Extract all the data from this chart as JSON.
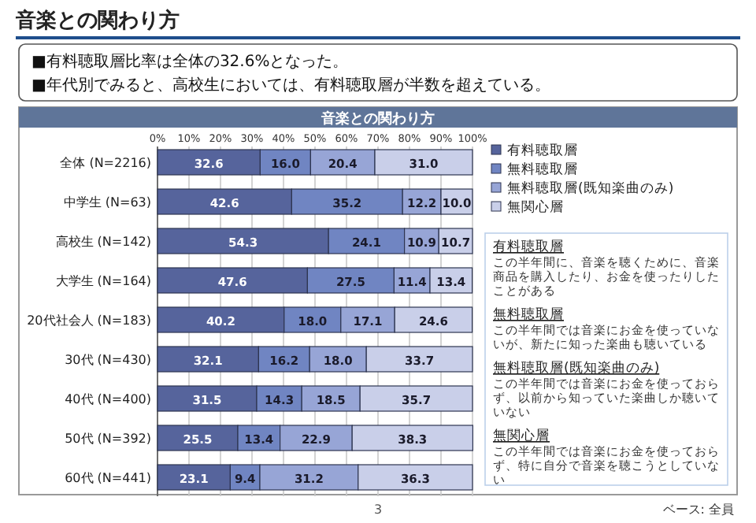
{
  "chart_data": {
    "type": "bar",
    "orientation": "horizontal",
    "stacked": true,
    "title": "音楽との関わり方",
    "subtitle": "音楽との関わり方",
    "categories": [
      "全体 (N=2216)",
      "中学生 (N=63)",
      "高校生 (N=142)",
      "大学生 (N=164)",
      "20代社会人 (N=183)",
      "30代 (N=430)",
      "40代 (N=400)",
      "50代 (N=392)",
      "60代 (N=441)"
    ],
    "series": [
      {
        "name": "有料聴取層",
        "color": "#56649c",
        "values": [
          32.6,
          42.6,
          54.3,
          47.6,
          40.2,
          32.1,
          31.5,
          25.5,
          23.1
        ],
        "value_labels": [
          "32.6",
          "42.6",
          "54.3",
          "47.6",
          "40.2",
          "32.1",
          "31.5",
          "25.5",
          "23.1"
        ]
      },
      {
        "name": "無料聴取層",
        "color": "#7085c2",
        "values": [
          16.0,
          35.2,
          24.1,
          27.5,
          18.0,
          16.2,
          14.3,
          13.4,
          9.4
        ],
        "value_labels": [
          "16.0",
          "35.2",
          "24.1",
          "27.5",
          "18.0",
          "16.2",
          "14.3",
          "13.4",
          "9.4"
        ]
      },
      {
        "name": "無料聴取層(既知楽曲のみ)",
        "color": "#97a5d6",
        "values": [
          20.4,
          12.2,
          10.9,
          11.4,
          17.1,
          18.0,
          18.5,
          22.9,
          31.2
        ],
        "value_labels": [
          "20.4",
          "12.2",
          "10.9",
          "11.4",
          "17.1",
          "18.0",
          "18.5",
          "22.9",
          "31.2"
        ]
      },
      {
        "name": "無関心層",
        "color": "#c9cfe9",
        "values": [
          31.0,
          10.0,
          10.7,
          13.4,
          24.6,
          33.7,
          35.7,
          38.3,
          36.3
        ],
        "value_labels": [
          "31.0",
          "10.0",
          "10.7",
          "13.4",
          "24.6",
          "33.7",
          "35.7",
          "38.3",
          "36.3"
        ]
      }
    ],
    "xlim": [
      0,
      100
    ],
    "xticks": [
      {
        "value": 0,
        "label": "0%"
      },
      {
        "value": 10,
        "label": "10%"
      },
      {
        "value": 20,
        "label": "20%"
      },
      {
        "value": 30,
        "label": "30%"
      },
      {
        "value": 40,
        "label": "40%"
      },
      {
        "value": 50,
        "label": "50%"
      },
      {
        "value": 60,
        "label": "60%"
      },
      {
        "value": 70,
        "label": "70%"
      },
      {
        "value": 80,
        "label": "80%"
      },
      {
        "value": 90,
        "label": "90%"
      },
      {
        "value": 100,
        "label": "100%"
      }
    ],
    "grid": "x",
    "legend": "right",
    "annotations": [
      "■有料聴取層比率は全体の32.6%となった。",
      "■年代別でみると、高校生においては、有料聴取層が半数を超えている。",
      "有料聴取層",
      "この半年間に、音楽を聴くために、音楽商品を購入したり、お金を使ったりしたことがある",
      "無料聴取層",
      "この半年間では音楽にお金を使っていないが、新たに知った楽曲も聴いている",
      "無料聴取層(既知楽曲のみ)",
      "この半年間では音楽にお金を使っておらず、以前から知っていた楽曲しか聴いていない",
      "無関心層",
      "この半年間では音楽にお金を使っておらず、特に自分で音楽を聴こうとしていない",
      "3",
      "ベース: 全員"
    ]
  }
}
